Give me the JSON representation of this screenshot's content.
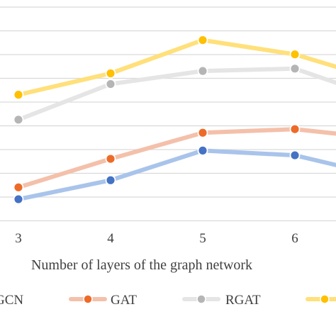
{
  "chart_data": {
    "type": "line",
    "xlabel": "Number of layers of the graph network",
    "ylabel": "",
    "categories": [
      "3",
      "4",
      "5",
      "6"
    ],
    "x": [
      3,
      4,
      5,
      6
    ],
    "grid": true,
    "legend_placement": "bottom",
    "series": [
      {
        "name": "GCN",
        "color": "#a9c4eb",
        "marker_color": "#4472c4",
        "values": [
          1.7,
          2.5,
          3.75,
          3.55
        ],
        "trailing": 3.0
      },
      {
        "name": "GAT",
        "color": "#f4c0aa",
        "marker_color": "#ed6b28",
        "values": [
          2.2,
          3.4,
          4.5,
          4.65
        ],
        "trailing": 4.4
      },
      {
        "name": "RGAT",
        "color": "#e5e5e5",
        "marker_color": "#b5b5b5",
        "values": [
          5.05,
          6.55,
          7.1,
          7.2
        ],
        "trailing": 6.4
      },
      {
        "name": "",
        "color": "#ffe07a",
        "marker_color": "#ffc000",
        "values": [
          6.1,
          7.0,
          8.4,
          7.8
        ],
        "trailing": 7.1
      }
    ]
  }
}
